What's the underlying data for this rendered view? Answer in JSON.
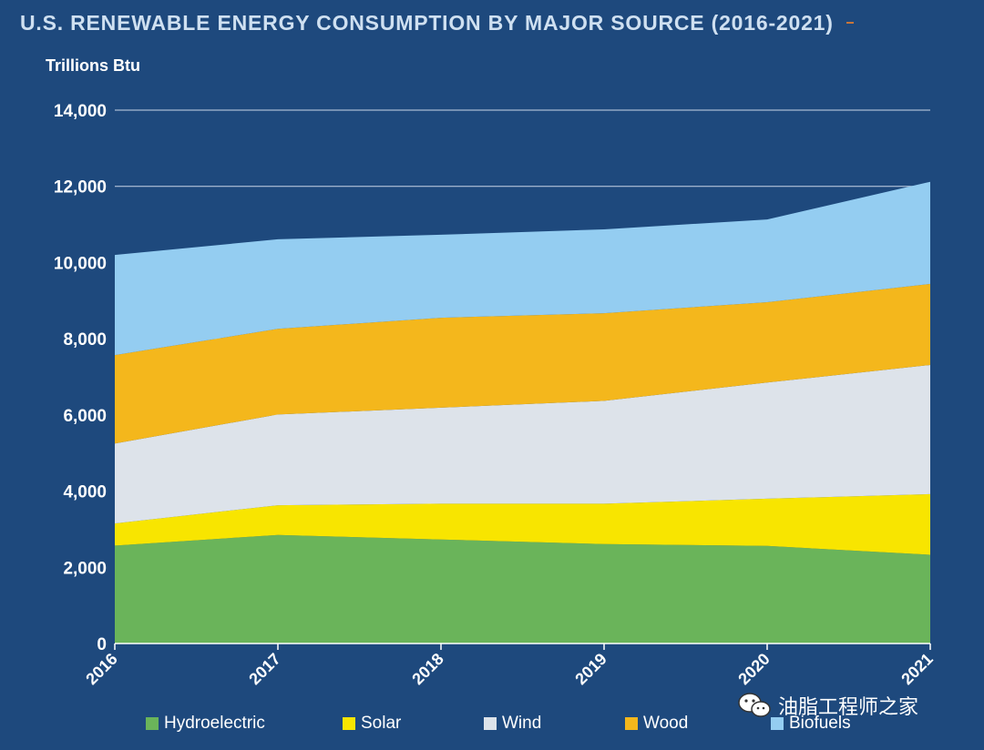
{
  "chart_data": {
    "type": "area",
    "stacked": true,
    "title": "U.S. RENEWABLE ENERGY CONSUMPTION BY MAJOR SOURCE (2016-2021)",
    "ylabel": "Trillions Btu",
    "xlabel": "",
    "x": [
      "2016",
      "2017",
      "2018",
      "2019",
      "2020",
      "2021"
    ],
    "ylim": [
      0,
      14000
    ],
    "yticks": [
      0,
      2000,
      4000,
      6000,
      8000,
      10000,
      12000,
      14000
    ],
    "ytick_labels": [
      "0",
      "2,000",
      "4,000",
      "6,000",
      "8,000",
      "10,000",
      "12,000",
      "14,000"
    ],
    "grid": true,
    "legend_position": "bottom",
    "series": [
      {
        "name": "Hydroelectric",
        "color": "#6ab45a",
        "values": [
          2570,
          2850,
          2730,
          2610,
          2560,
          2330
        ]
      },
      {
        "name": "Solar",
        "color": "#f8e500",
        "values": [
          580,
          780,
          940,
          1060,
          1240,
          1590
        ]
      },
      {
        "name": "Wind",
        "color": "#dde3ea",
        "values": [
          2100,
          2380,
          2520,
          2700,
          3050,
          3390
        ]
      },
      {
        "name": "Wood",
        "color": "#f4b71c",
        "values": [
          2320,
          2250,
          2360,
          2300,
          2110,
          2130
        ]
      },
      {
        "name": "Biofuels",
        "color": "#94cdf1",
        "values": [
          2630,
          2350,
          2180,
          2200,
          2170,
          2680
        ]
      }
    ]
  },
  "watermark": {
    "icon": "wechat-icon",
    "text": "油脂工程师之家"
  }
}
